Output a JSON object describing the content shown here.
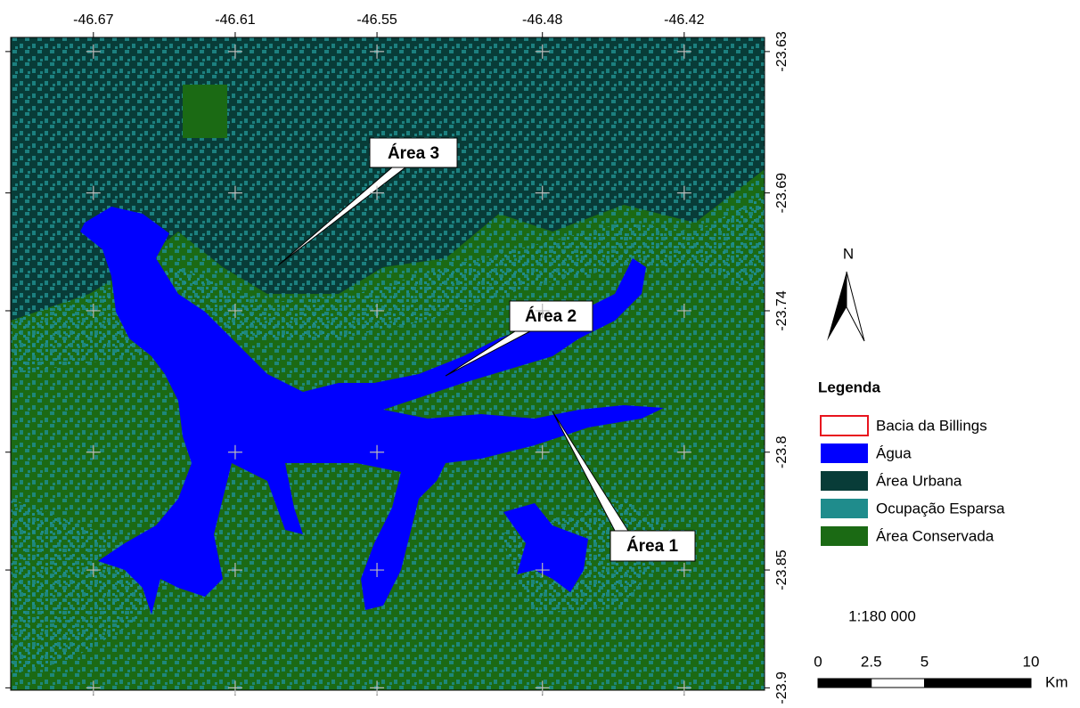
{
  "map": {
    "lon_ticks": [
      -46.67,
      -46.61,
      -46.55,
      -46.48,
      -46.42
    ],
    "lat_ticks": [
      -23.63,
      -23.69,
      -23.74,
      -23.8,
      -23.85,
      -23.9
    ],
    "lonlim": [
      -46.705,
      -46.386
    ],
    "latlim": [
      -23.624,
      -23.901
    ],
    "callouts": [
      "Área 3",
      "Área 2",
      "Área 1"
    ],
    "north": "N",
    "legend": {
      "title": "Legenda",
      "items": [
        {
          "name": "Bacia da Billings",
          "color": "#e8141e",
          "outline": true
        },
        {
          "name": "Água",
          "color": "#0000ff"
        },
        {
          "name": "Área Urbana",
          "color": "#083c38"
        },
        {
          "name": "Ocupação Esparsa",
          "color": "#1f8c8c"
        },
        {
          "name": "Área Conservada",
          "color": "#1b6a14"
        }
      ]
    },
    "scale_text": "1:180 000",
    "scale_bar": {
      "ticks": [
        0,
        2.5,
        5,
        10
      ],
      "max": 10,
      "unit": "Km"
    }
  }
}
